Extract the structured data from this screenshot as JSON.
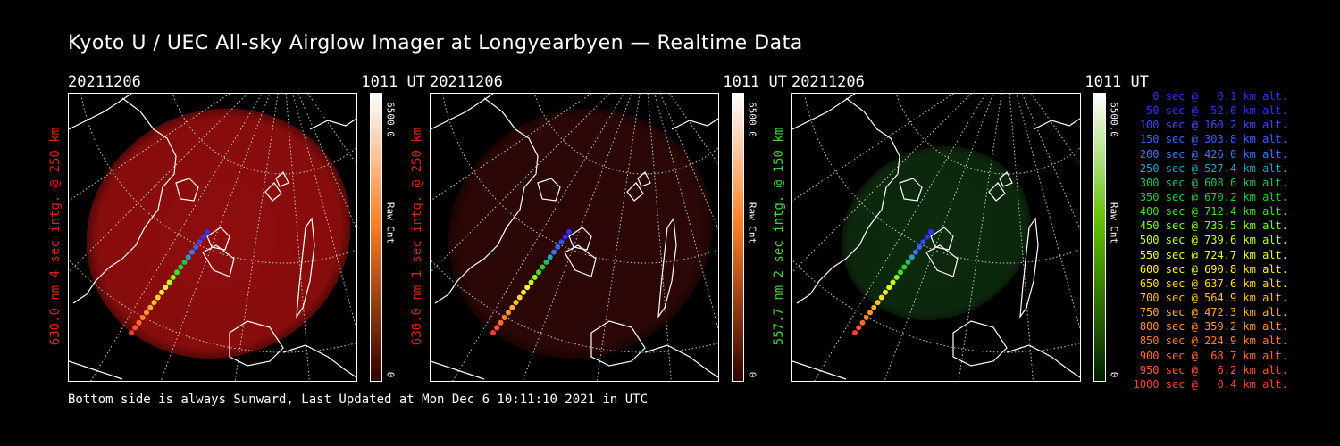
{
  "title": "Kyoto U / UEC All-sky Airglow Imager at Longyearbyen — Realtime Data",
  "footer": "Bottom side is always Sunward, Last Updated at Mon Dec  6 10:11:10 2021 in UTC",
  "panels": [
    {
      "date": "20211206",
      "time": "1011 UT",
      "label": "630.0 nm 4 sec intg. @ 250 km",
      "label_color": "#e02010",
      "cbar_max": "6500.0",
      "cbar_unit": "Raw Cnt",
      "cbar_min": "0",
      "blob_color": "#8e0d0d",
      "cbar_top": "#ffffff",
      "cbar_mid": "#ff7f24",
      "cbar_bottom": "#300000"
    },
    {
      "date": "20211206",
      "time": "1011 UT",
      "label": "630.0 nm 1 sec intg. @ 250 km",
      "label_color": "#e02010",
      "cbar_max": "6500.0",
      "cbar_unit": "Raw Cnt",
      "cbar_min": "0",
      "blob_color": "#2c0606",
      "cbar_top": "#ffffff",
      "cbar_mid": "#ff7f24",
      "cbar_bottom": "#300000"
    },
    {
      "date": "20211206",
      "time": "1011 UT",
      "label": "557.7 nm 2 sec intg. @ 150 km",
      "label_color": "#40d040",
      "cbar_max": "6500.0",
      "cbar_unit": "Raw Cnt",
      "cbar_min": "0",
      "blob_color": "#0d2a0d",
      "cbar_top": "#ffffff",
      "cbar_mid": "#60c000",
      "cbar_bottom": "#002000"
    }
  ],
  "legend": [
    {
      "text": "0 sec @   0.1 km alt.",
      "color": "#3030ff"
    },
    {
      "text": "50 sec @  52.0 km alt.",
      "color": "#3030ff"
    },
    {
      "text": "100 sec @ 160.2 km alt.",
      "color": "#3a4aff"
    },
    {
      "text": "150 sec @ 303.8 km alt.",
      "color": "#3a60ff"
    },
    {
      "text": "200 sec @ 426.0 km alt.",
      "color": "#3a78f0"
    },
    {
      "text": "250 sec @ 527.4 km alt.",
      "color": "#2aa0c0"
    },
    {
      "text": "300 sec @ 608.6 km alt.",
      "color": "#20c060"
    },
    {
      "text": "350 sec @ 670.2 km alt.",
      "color": "#20d030"
    },
    {
      "text": "400 sec @ 712.4 km alt.",
      "color": "#40e020"
    },
    {
      "text": "450 sec @ 735.5 km alt.",
      "color": "#80ff20"
    },
    {
      "text": "500 sec @ 739.6 km alt.",
      "color": "#c0ff20"
    },
    {
      "text": "550 sec @ 724.7 km alt.",
      "color": "#f0ff30"
    },
    {
      "text": "600 sec @ 690.8 km alt.",
      "color": "#ffee30"
    },
    {
      "text": "650 sec @ 637.6 km alt.",
      "color": "#ffd530"
    },
    {
      "text": "700 sec @ 564.9 km alt.",
      "color": "#ffc030"
    },
    {
      "text": "750 sec @ 472.3 km alt.",
      "color": "#ffaa30"
    },
    {
      "text": "800 sec @ 359.2 km alt.",
      "color": "#ff9530"
    },
    {
      "text": "850 sec @ 224.9 km alt.",
      "color": "#ff8030"
    },
    {
      "text": "900 sec @  68.7 km alt.",
      "color": "#ff6a30"
    },
    {
      "text": "950 sec @   6.2 km alt.",
      "color": "#ff5530"
    },
    {
      "text": "1000 sec @   0.4 km alt.",
      "color": "#ff4030"
    }
  ]
}
